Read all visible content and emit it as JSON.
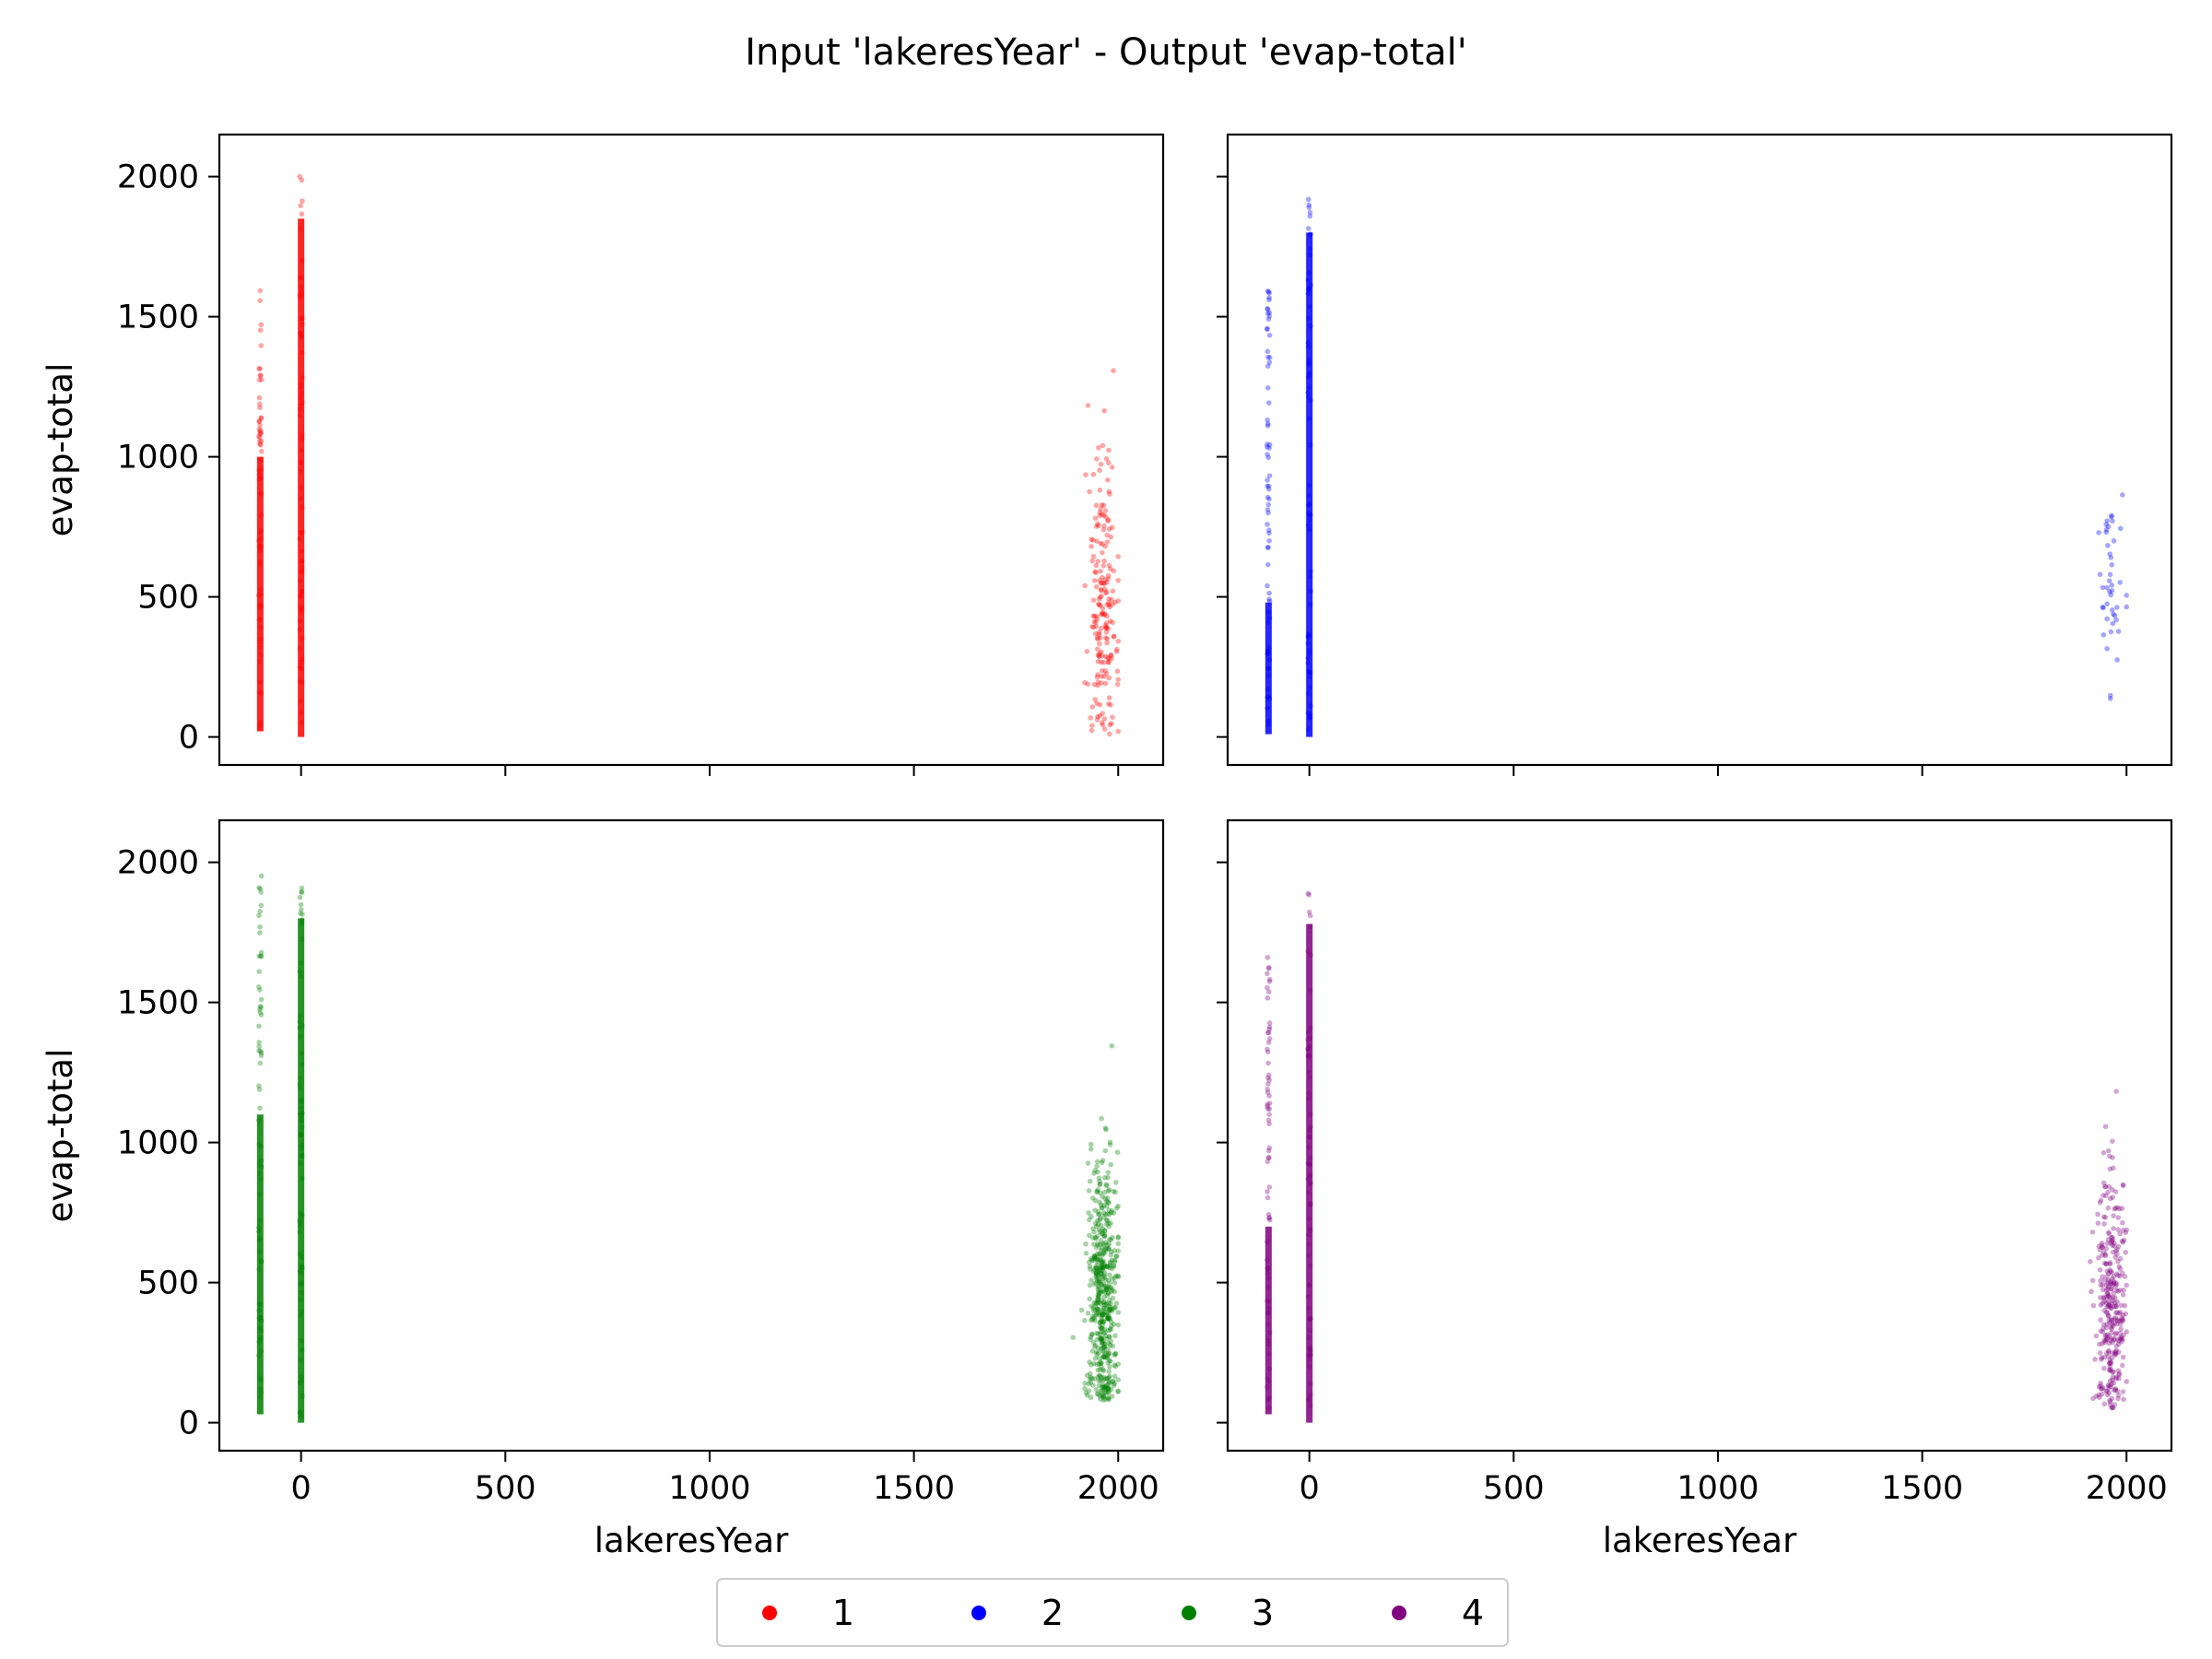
{
  "title": "Input 'lakeresYear' - Output 'evap-total'",
  "chart_data": {
    "type": "scatter",
    "layout": "2x2 subplots, shared x and y axes",
    "xlabel": "lakeresYear",
    "ylabel": "evap-total",
    "xlim": [
      -200,
      2110
    ],
    "ylim": [
      -100,
      2150
    ],
    "xticks": [
      0,
      500,
      1000,
      1500,
      2000
    ],
    "xtick_labels": [
      "0",
      "500",
      "1000",
      "1500",
      "2000"
    ],
    "yticks": [
      0,
      500,
      1000,
      1500,
      2000
    ],
    "ytick_labels": [
      "0",
      "500",
      "1000",
      "1500",
      "2000"
    ],
    "grid": false,
    "legend_placement": "bottom-center",
    "series": [
      {
        "name": "1",
        "color": "#ff0000",
        "panel": "top-left",
        "clusters": [
          {
            "x": -100,
            "ymin": 20,
            "ymax": 1600,
            "dense_max": 1000
          },
          {
            "x": 0,
            "ymin": 0,
            "ymax": 2050,
            "dense_max": 1850
          },
          {
            "x_range": [
              1890,
              2000
            ],
            "ymin": 10,
            "ymax": 1390,
            "center": 500
          }
        ]
      },
      {
        "name": "2",
        "color": "#0000ff",
        "panel": "top-right",
        "clusters": [
          {
            "x": -100,
            "ymin": 10,
            "ymax": 1650,
            "dense_max": 480
          },
          {
            "x": 0,
            "ymin": 0,
            "ymax": 1920,
            "dense_max": 1800
          },
          {
            "x_range": [
              1900,
              2000
            ],
            "ymin": 30,
            "ymax": 1110,
            "center": 550
          }
        ]
      },
      {
        "name": "3",
        "color": "#008000",
        "panel": "bottom-left",
        "clusters": [
          {
            "x": -100,
            "ymin": 30,
            "ymax": 2020,
            "dense_max": 1100
          },
          {
            "x": 0,
            "ymin": 0,
            "ymax": 1950,
            "dense_max": 1800
          },
          {
            "x_range": [
              1840,
              2000
            ],
            "ymin": 80,
            "ymax": 1480,
            "center": 450
          }
        ]
      },
      {
        "name": "4",
        "color": "#800080",
        "panel": "bottom-right",
        "clusters": [
          {
            "x": -100,
            "ymin": 30,
            "ymax": 1710,
            "dense_max": 700
          },
          {
            "x": 0,
            "ymin": 0,
            "ymax": 1890,
            "dense_max": 1780
          },
          {
            "x_range": [
              1860,
              2000
            ],
            "ymin": 50,
            "ymax": 1340,
            "center": 420
          }
        ]
      }
    ]
  }
}
